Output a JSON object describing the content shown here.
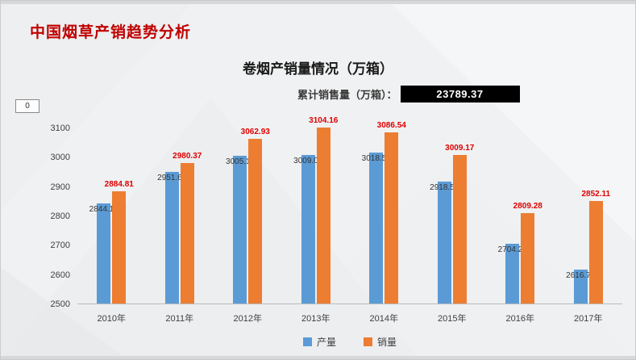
{
  "slide": {
    "title": "中国烟草产销趋势分析",
    "stray_box_text": "0"
  },
  "chart": {
    "title": "卷烟产销量情况（万箱）",
    "cumulative_label": "累计销售量（万箱）：",
    "cumulative_value": "23789.37"
  },
  "chart_data": {
    "type": "bar",
    "title": "卷烟产销量情况（万箱）",
    "annotation": {
      "label": "累计销售量（万箱）：",
      "value": "23789.37"
    },
    "categories": [
      "2010年",
      "2011年",
      "2012年",
      "2013年",
      "2014年",
      "2015年",
      "2016年",
      "2017年"
    ],
    "series": [
      {
        "id": "production",
        "name": "产量",
        "color": "#5B9BD5",
        "label_color": "#333333",
        "label_position": "inside",
        "values": [
          2844.13,
          2951.66,
          3005.11,
          3009.04,
          3018.59,
          2918.52,
          2704.23,
          2616.7
        ],
        "labels": [
          "2844.13",
          "2951.66",
          "3005.11",
          "3009.04",
          "3018.59",
          "2918.52",
          "2704.23",
          "2616.70"
        ]
      },
      {
        "id": "sales",
        "name": "销量",
        "color": "#ED7D31",
        "label_color": "#E00000",
        "label_position": "above",
        "values": [
          2884.81,
          2980.37,
          3062.93,
          3104.16,
          3086.54,
          3009.17,
          2809.28,
          2852.11
        ],
        "labels": [
          "2884.81",
          "2980.37",
          "3062.93",
          "3104.16",
          "3086.54",
          "3009.17",
          "2809.28",
          "2852.11"
        ]
      }
    ],
    "y_ticks": [
      2500,
      2600,
      2700,
      2800,
      2900,
      3000,
      3100
    ],
    "ylim": [
      2500,
      3150
    ],
    "xlabel": "",
    "ylabel": "",
    "grid": false,
    "legend_position": "bottom"
  },
  "colors": {
    "title_red": "#C00000",
    "label_red": "#E00000",
    "production_blue": "#5B9BD5",
    "sales_orange": "#ED7D31",
    "badge_bg": "#000000",
    "badge_text": "#FFFFFF",
    "slide_bg": "#F0F1F2"
  }
}
